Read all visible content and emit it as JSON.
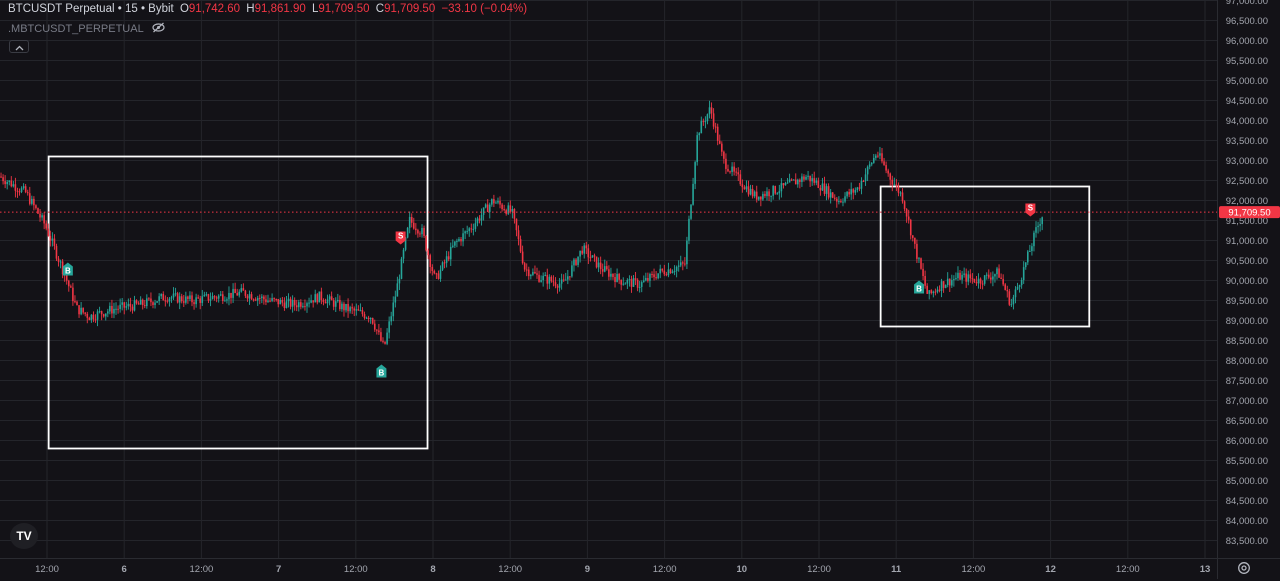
{
  "header": {
    "symbol": "BTCUSDT Perpetual",
    "sep1": " • ",
    "interval": "15",
    "sep2": " • ",
    "exchange": "Bybit",
    "o_label": "O",
    "o_value": "91,742.60",
    "h_label": "H",
    "h_value": "91,861.90",
    "l_label": "L",
    "l_value": "91,709.50",
    "c_label": "C",
    "c_value": "91,709.50",
    "change": "−33.10 (−0.04%)",
    "indicator": ".MBTCUSDT_PERPETUAL"
  },
  "icons": {
    "hide": "eye-off-icon",
    "collapse": "chevron-up-icon",
    "logo": "tradingview-logo",
    "settings": "gear-icon"
  },
  "colors": {
    "background": "#131217",
    "grid": "#24252b",
    "up": "#26a69a",
    "down": "#f23645",
    "buy_marker": "#26a69a",
    "sell_marker": "#f23645",
    "box": "#ffffff",
    "price_line": "#f23645"
  },
  "logo_text": "TV",
  "chart_data": {
    "type": "candlestick",
    "interval": "15",
    "y_axis": {
      "min": 83500,
      "max": 97000,
      "step": 500,
      "labels": [
        "97,000.00",
        "96,500.00",
        "96,000.00",
        "95,500.00",
        "95,000.00",
        "94,500.00",
        "94,000.00",
        "93,500.00",
        "93,000.00",
        "92,500.00",
        "92,000.00",
        "91,500.00",
        "91,000.00",
        "90,500.00",
        "90,000.00",
        "89,500.00",
        "89,000.00",
        "88,500.00",
        "88,000.00",
        "87,500.00",
        "87,000.00",
        "86,500.00",
        "86,000.00",
        "85,500.00",
        "85,000.00",
        "84,500.00",
        "84,000.00",
        "83,500.00"
      ]
    },
    "x_axis": {
      "labels": [
        "12:00",
        "6",
        "12:00",
        "7",
        "12:00",
        "8",
        "12:00",
        "9",
        "12:00",
        "10",
        "12:00",
        "11",
        "12:00",
        "12",
        "12:00",
        "13"
      ]
    },
    "last_price": 91709.5,
    "last_price_label": "91,709.50",
    "price_path": [
      [
        0,
        92600
      ],
      [
        0.02,
        92200
      ],
      [
        0.035,
        91400
      ],
      [
        0.05,
        90200
      ],
      [
        0.06,
        89300
      ],
      [
        0.07,
        89100
      ],
      [
        0.09,
        89300
      ],
      [
        0.11,
        89400
      ],
      [
        0.13,
        89600
      ],
      [
        0.15,
        89500
      ],
      [
        0.17,
        89600
      ],
      [
        0.19,
        89700
      ],
      [
        0.21,
        89500
      ],
      [
        0.23,
        89400
      ],
      [
        0.25,
        89600
      ],
      [
        0.27,
        89300
      ],
      [
        0.29,
        89100
      ],
      [
        0.3,
        88300
      ],
      [
        0.31,
        89800
      ],
      [
        0.32,
        91500
      ],
      [
        0.33,
        91200
      ],
      [
        0.34,
        90000
      ],
      [
        0.355,
        90900
      ],
      [
        0.37,
        91400
      ],
      [
        0.385,
        92000
      ],
      [
        0.4,
        91700
      ],
      [
        0.41,
        90300
      ],
      [
        0.42,
        90100
      ],
      [
        0.44,
        89900
      ],
      [
        0.455,
        90800
      ],
      [
        0.47,
        90300
      ],
      [
        0.485,
        90000
      ],
      [
        0.5,
        89900
      ],
      [
        0.515,
        90200
      ],
      [
        0.525,
        90300
      ],
      [
        0.535,
        90400
      ],
      [
        0.545,
        93700
      ],
      [
        0.555,
        94300
      ],
      [
        0.565,
        93000
      ],
      [
        0.575,
        92600
      ],
      [
        0.59,
        92100
      ],
      [
        0.61,
        92300
      ],
      [
        0.63,
        92600
      ],
      [
        0.64,
        92400
      ],
      [
        0.655,
        92000
      ],
      [
        0.67,
        92300
      ],
      [
        0.685,
        93200
      ],
      [
        0.695,
        92600
      ],
      [
        0.705,
        92100
      ],
      [
        0.715,
        90800
      ],
      [
        0.725,
        89600
      ],
      [
        0.735,
        89900
      ],
      [
        0.75,
        90100
      ],
      [
        0.765,
        90000
      ],
      [
        0.78,
        90200
      ],
      [
        0.79,
        89400
      ],
      [
        0.8,
        90300
      ],
      [
        0.81,
        91300
      ],
      [
        0.815,
        91700
      ]
    ],
    "trades": [
      {
        "side": "buy",
        "label": "B",
        "t": 0.053,
        "price": 90350
      },
      {
        "side": "buy",
        "label": "B",
        "t": 0.298,
        "price": 87800
      },
      {
        "side": "sell",
        "label": "S",
        "t": 0.313,
        "price": 91000
      },
      {
        "side": "buy",
        "label": "B",
        "t": 0.718,
        "price": 89900
      },
      {
        "side": "sell",
        "label": "S",
        "t": 0.805,
        "price": 91700
      }
    ],
    "highlight_boxes": [
      {
        "t_start": 0.038,
        "t_end": 0.334,
        "price_high": 93100,
        "price_low": 85800
      },
      {
        "t_start": 0.688,
        "t_end": 0.851,
        "price_high": 92350,
        "price_low": 88850
      }
    ]
  }
}
